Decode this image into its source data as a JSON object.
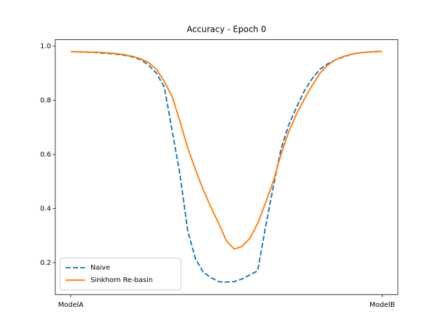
{
  "chart_data": {
    "type": "line",
    "title": "Accuracy - Epoch 0",
    "x": [
      0,
      0.025,
      0.05,
      0.075,
      0.1,
      0.125,
      0.15,
      0.175,
      0.2,
      0.225,
      0.25,
      0.275,
      0.3,
      0.325,
      0.35,
      0.375,
      0.4,
      0.425,
      0.45,
      0.475,
      0.5,
      0.525,
      0.55,
      0.575,
      0.6,
      0.625,
      0.65,
      0.675,
      0.7,
      0.725,
      0.75,
      0.775,
      0.8,
      0.825,
      0.85,
      0.875,
      0.9,
      0.925,
      0.95,
      0.975,
      1
    ],
    "series": [
      {
        "name": "Naive",
        "color": "#1f77b4",
        "linestyle": "dashed",
        "values": [
          0.98,
          0.979,
          0.978,
          0.977,
          0.975,
          0.973,
          0.97,
          0.966,
          0.96,
          0.95,
          0.93,
          0.9,
          0.85,
          0.69,
          0.53,
          0.32,
          0.215,
          0.165,
          0.145,
          0.13,
          0.128,
          0.13,
          0.14,
          0.155,
          0.17,
          0.33,
          0.48,
          0.62,
          0.71,
          0.775,
          0.835,
          0.88,
          0.915,
          0.935,
          0.95,
          0.96,
          0.97,
          0.975,
          0.978,
          0.98,
          0.981
        ]
      },
      {
        "name": "Sinkhorn Re-basin",
        "color": "#ff7f0e",
        "linestyle": "solid",
        "values": [
          0.98,
          0.979,
          0.979,
          0.978,
          0.977,
          0.975,
          0.972,
          0.968,
          0.962,
          0.953,
          0.94,
          0.915,
          0.87,
          0.815,
          0.725,
          0.625,
          0.545,
          0.47,
          0.405,
          0.345,
          0.28,
          0.25,
          0.26,
          0.29,
          0.345,
          0.42,
          0.5,
          0.6,
          0.685,
          0.75,
          0.805,
          0.855,
          0.9,
          0.93,
          0.95,
          0.962,
          0.97,
          0.975,
          0.978,
          0.98,
          0.981
        ]
      }
    ],
    "xlim": [
      -0.05,
      1.05
    ],
    "ylim": [
      0.082,
      1.024
    ],
    "xticks": [
      {
        "value": 0,
        "label": "ModelA"
      },
      {
        "value": 1,
        "label": "ModelB"
      }
    ],
    "yticks": [
      0.2,
      0.4,
      0.6,
      0.8,
      {
        "value": 1,
        "label": "1.0"
      }
    ],
    "legend": "lower left",
    "grid": false
  }
}
